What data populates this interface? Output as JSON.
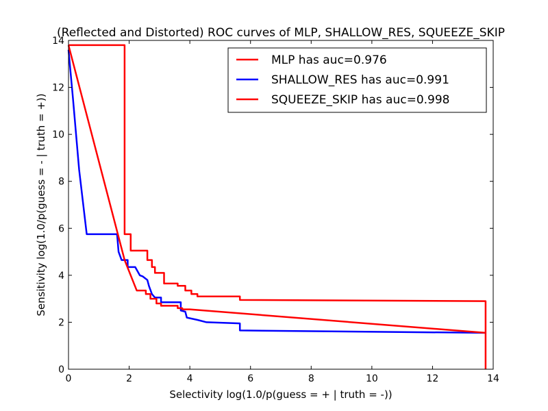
{
  "chart_data": {
    "type": "line",
    "title": "(Reflected and Distorted) ROC curves of MLP, SHALLOW_RES, SQUEEZE_SKIP",
    "xlabel": "Selectivity log(1.0/p(guess = + | truth = -))",
    "ylabel": "Sensitivity log(1.0/p(guess = - | truth = +))",
    "xlim": [
      0,
      14
    ],
    "ylim": [
      0,
      14
    ],
    "xticks": [
      0,
      2,
      4,
      6,
      8,
      10,
      12,
      14
    ],
    "yticks": [
      0,
      2,
      4,
      6,
      8,
      10,
      12,
      14
    ],
    "xtick_labels": [
      "0",
      "2",
      "4",
      "6",
      "8",
      "10",
      "12",
      "14"
    ],
    "ytick_labels": [
      "0",
      "2",
      "4",
      "6",
      "8",
      "10",
      "12",
      "14"
    ],
    "grid": false,
    "legend_position": "top-right",
    "series": [
      {
        "name": "MLP has auc=0.976",
        "color": "#ff0000",
        "x": [
          0,
          1.85,
          1.85,
          2.05,
          2.05,
          2.6,
          2.6,
          2.75,
          2.75,
          2.85,
          2.85,
          3.15,
          3.15,
          3.6,
          3.6,
          3.85,
          3.85,
          4.05,
          4.05,
          4.25,
          4.25,
          5.65,
          5.65,
          13.75,
          13.75
        ],
        "y": [
          13.8,
          13.8,
          5.75,
          5.75,
          5.05,
          5.05,
          4.65,
          4.65,
          4.35,
          4.35,
          4.1,
          4.1,
          3.65,
          3.65,
          3.55,
          3.55,
          3.35,
          3.35,
          3.2,
          3.2,
          3.1,
          3.1,
          2.95,
          2.9,
          0
        ]
      },
      {
        "name": "SHALLOW_RES has auc=0.991",
        "color": "#0000ff",
        "x": [
          0,
          0.15,
          0.35,
          0.6,
          1.6,
          1.65,
          1.75,
          1.95,
          1.95,
          2.2,
          2.35,
          2.45,
          2.6,
          2.65,
          2.75,
          2.85,
          3.05,
          3.05,
          3.7,
          3.7,
          3.85,
          3.9,
          4.25,
          4.55,
          5.65,
          5.65,
          13.75
        ],
        "y": [
          13.6,
          11.5,
          8.5,
          5.75,
          5.75,
          5.0,
          4.65,
          4.65,
          4.35,
          4.35,
          4.0,
          3.95,
          3.8,
          3.55,
          3.2,
          3.05,
          3.05,
          2.85,
          2.85,
          2.5,
          2.45,
          2.2,
          2.1,
          2.0,
          1.95,
          1.65,
          1.55
        ]
      },
      {
        "name": "SQUEEZE_SKIP has auc=0.998",
        "color": "#ff0000",
        "x": [
          0,
          1.85,
          2.25,
          2.55,
          2.55,
          2.7,
          2.7,
          2.9,
          2.9,
          3.05,
          3.05,
          3.6,
          3.6,
          3.75,
          3.75,
          4.0,
          13.75
        ],
        "y": [
          13.8,
          4.65,
          3.35,
          3.35,
          3.2,
          3.2,
          3.0,
          3.0,
          2.8,
          2.8,
          2.7,
          2.7,
          2.6,
          2.6,
          2.55,
          2.55,
          1.55
        ]
      }
    ]
  }
}
